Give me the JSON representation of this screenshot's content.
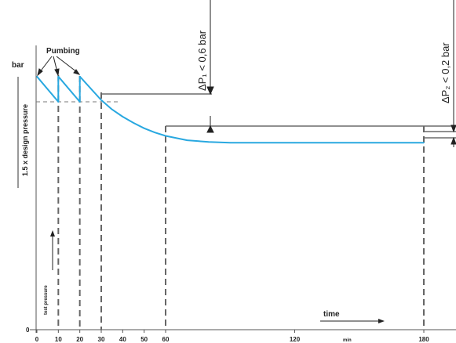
{
  "chart_data": {
    "type": "line",
    "ylabel": "bar",
    "xlabel": "time",
    "x_unit": "min",
    "x_ticks": [
      "0",
      "10",
      "20",
      "30",
      "40",
      "50",
      "60",
      "120",
      "180"
    ],
    "y_ticks": [
      "0"
    ],
    "vertical_markers": [
      10,
      20,
      30,
      60,
      180
    ],
    "series": [
      {
        "color": "#29a8e0",
        "x": [
          0,
          10,
          10,
          20,
          20,
          30,
          35,
          40,
          45,
          50,
          55,
          60,
          70,
          80,
          90,
          120,
          150,
          180
        ],
        "y": [
          1.5,
          1.35,
          1.5,
          1.35,
          1.5,
          1.36,
          1.305,
          1.262,
          1.225,
          1.193,
          1.168,
          1.148,
          1.122,
          1.112,
          1.108,
          1.108,
          1.108,
          1.108
        ]
      }
    ],
    "annotations": {
      "pumping": "Pumbing",
      "delta_p1": "ΔP₁ < 0,6 bar",
      "delta_p2": "ΔP₂ < 0,2 bar",
      "design_pressure": "1.5 x design pressure",
      "test_pressure": "test pressure"
    }
  }
}
